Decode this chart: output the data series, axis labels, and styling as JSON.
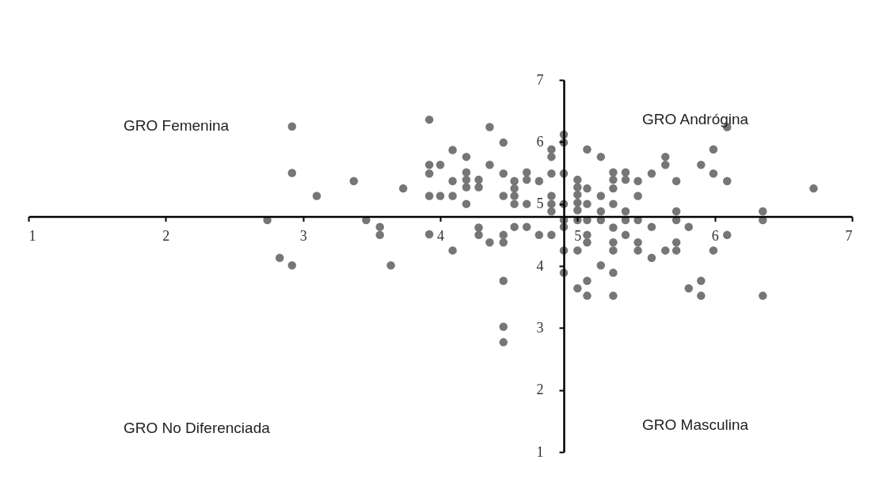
{
  "chart_data": {
    "type": "scatter",
    "x": [
      2.92,
      2.92,
      3.1,
      3.37,
      3.73,
      3.92,
      3.92,
      3.92,
      4.0,
      3.92,
      4.0,
      4.09,
      4.09,
      2.74,
      3.46,
      3.56,
      3.56,
      3.92,
      4.09,
      2.83,
      2.92,
      3.64,
      4.09,
      4.19,
      4.19,
      4.19,
      4.19,
      4.19,
      4.28,
      4.28,
      4.36,
      4.36,
      4.46,
      4.46,
      4.46,
      4.54,
      4.54,
      4.54,
      4.54,
      4.63,
      4.63,
      4.63,
      4.72,
      4.81,
      4.81,
      4.81,
      4.81,
      4.81,
      4.81,
      4.9,
      4.9,
      4.9,
      4.9,
      4.9,
      4.9,
      4.9,
      4.9,
      4.28,
      4.28,
      4.36,
      4.46,
      4.46,
      4.46,
      4.46,
      4.46,
      4.54,
      4.63,
      4.72,
      4.81,
      5.0,
      5.0,
      5.0,
      5.0,
      5.0,
      5.0,
      5.0,
      5.0,
      5.07,
      5.07,
      5.07,
      5.07,
      5.07,
      5.07,
      5.07,
      5.07,
      5.17,
      5.17,
      5.17,
      5.17,
      5.17,
      5.26,
      5.26,
      5.26,
      5.26,
      5.26,
      5.26,
      5.26,
      5.26,
      5.26,
      5.35,
      5.35,
      5.35,
      5.35,
      5.35,
      5.44,
      5.44,
      5.44,
      5.44,
      5.44,
      5.54,
      5.54,
      5.54,
      5.64,
      5.64,
      5.64,
      5.72,
      5.72,
      5.72,
      5.72,
      5.72,
      5.81,
      5.81,
      5.9,
      5.9,
      5.9,
      6.09,
      5.99,
      5.99,
      6.09,
      6.72,
      6.35,
      6.35,
      6.09,
      5.99,
      6.35
    ],
    "values": [
      6.25,
      5.5,
      5.13,
      5.37,
      5.25,
      6.36,
      5.63,
      5.49,
      5.63,
      5.13,
      5.13,
      5.13,
      5.37,
      4.74,
      4.74,
      4.63,
      4.5,
      4.51,
      4.25,
      4.13,
      4.01,
      4.01,
      5.87,
      5.76,
      5.51,
      5.39,
      5.27,
      5.0,
      5.39,
      5.27,
      6.24,
      5.63,
      5.99,
      5.49,
      5.13,
      5.37,
      5.25,
      5.13,
      5.0,
      5.51,
      5.39,
      5.0,
      5.37,
      5.88,
      5.76,
      5.49,
      5.13,
      5.0,
      4.88,
      6.12,
      5.99,
      5.49,
      5.0,
      4.74,
      4.63,
      4.25,
      3.89,
      4.62,
      4.5,
      4.38,
      4.5,
      4.38,
      3.76,
      3.02,
      2.77,
      4.63,
      4.63,
      4.5,
      4.5,
      5.39,
      5.27,
      5.15,
      5.02,
      4.9,
      4.74,
      4.25,
      3.64,
      5.88,
      5.25,
      5.0,
      4.74,
      4.5,
      4.38,
      3.76,
      3.52,
      5.76,
      5.13,
      4.88,
      4.74,
      4.01,
      5.51,
      5.39,
      5.25,
      5.0,
      4.62,
      4.38,
      4.25,
      3.89,
      3.52,
      5.51,
      5.39,
      4.88,
      4.74,
      4.5,
      5.37,
      5.13,
      4.74,
      4.38,
      4.25,
      5.49,
      4.63,
      4.13,
      5.76,
      5.63,
      4.25,
      5.37,
      4.88,
      4.74,
      4.38,
      4.25,
      4.63,
      3.64,
      5.63,
      3.76,
      3.52,
      6.24,
      5.88,
      5.49,
      5.37,
      5.25,
      4.88,
      4.74,
      4.5,
      4.25,
      3.52
    ],
    "color": "#767676",
    "marker": "circle",
    "xlim": [
      1,
      7
    ],
    "ylim": [
      1,
      7
    ],
    "xticks": [
      1,
      2,
      3,
      4,
      5,
      6,
      7
    ],
    "yticks": [
      1,
      2,
      3,
      4,
      5,
      6,
      7
    ],
    "grid": false,
    "annotations": [
      "GRO Femenina",
      "GRO Andrógina",
      "GRO No Diferenciada",
      "GRO Masculina"
    ]
  }
}
